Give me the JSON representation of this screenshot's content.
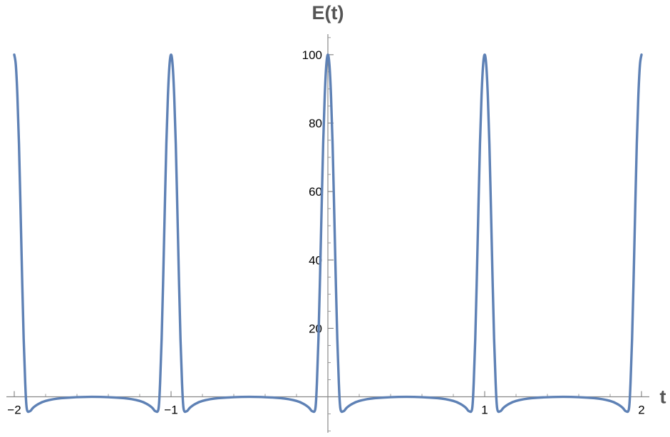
{
  "chart_data": {
    "type": "line",
    "title": "",
    "xlabel": "t",
    "ylabel": "E(t)",
    "xlim": [
      -2.05,
      2.05
    ],
    "ylim": [
      -10.5,
      106
    ],
    "x_ticks": [
      {
        "value": -2,
        "label": "−2"
      },
      {
        "value": -1,
        "label": "−1"
      },
      {
        "value": 1,
        "label": "1"
      },
      {
        "value": 2,
        "label": "2"
      }
    ],
    "y_ticks": [
      {
        "value": 20,
        "label": "20"
      },
      {
        "value": 40,
        "label": "40"
      },
      {
        "value": 60,
        "label": "60"
      },
      {
        "value": 80,
        "label": "80"
      },
      {
        "value": 100,
        "label": "100"
      }
    ],
    "grid": false,
    "legend": "none",
    "line_color": "#5E81B5",
    "series": [
      {
        "name": "",
        "x": [
          -2,
          -1.99,
          -1.98,
          -1.97,
          -1.96,
          -1.95,
          -1.94,
          -1.93,
          -1.92,
          -1.9,
          -1.88,
          -1.85,
          -1.8,
          -1.7,
          -1.5,
          -1.3,
          -1.2,
          -1.15,
          -1.12,
          -1.1,
          -1.08,
          -1.07,
          -1.06,
          -1.05,
          -1.04,
          -1.03,
          -1.02,
          -1.01,
          -1,
          -0.99,
          -0.98,
          -0.97,
          -0.96,
          -0.95,
          -0.94,
          -0.93,
          -0.92,
          -0.9,
          -0.88,
          -0.85,
          -0.8,
          -0.7,
          -0.5,
          -0.3,
          -0.2,
          -0.15,
          -0.12,
          -0.1,
          -0.08,
          -0.07,
          -0.06,
          -0.05,
          -0.04,
          -0.03,
          -0.02,
          -0.01,
          0,
          0.01,
          0.02,
          0.03,
          0.04,
          0.05,
          0.06,
          0.07,
          0.08,
          0.1,
          0.12,
          0.15,
          0.2,
          0.3,
          0.5,
          0.7,
          0.8,
          0.85,
          0.88,
          0.9,
          0.92,
          0.93,
          0.94,
          0.95,
          0.96,
          0.97,
          0.98,
          0.99,
          1,
          1.01,
          1.02,
          1.03,
          1.04,
          1.05,
          1.06,
          1.07,
          1.08,
          1.1,
          1.12,
          1.15,
          1.2,
          1.3,
          1.5,
          1.7,
          1.8,
          1.85,
          1.88,
          1.9,
          1.92,
          1.93,
          1.94,
          1.95,
          1.96,
          1.97,
          1.98,
          1.99,
          2
        ],
        "values": [
          100,
          97,
          88,
          74,
          55,
          35,
          17,
          4,
          -3.5,
          -4.2,
          -3.2,
          -2.2,
          -1.2,
          -0.4,
          0,
          -0.4,
          -1.2,
          -2.2,
          -3.2,
          -4.2,
          -3.5,
          4,
          17,
          35,
          55,
          74,
          88,
          97,
          100,
          97,
          88,
          74,
          55,
          35,
          17,
          4,
          -3.5,
          -4.2,
          -3.2,
          -2.2,
          -1.2,
          -0.4,
          0,
          -0.4,
          -1.2,
          -2.2,
          -3.2,
          -4.2,
          -3.5,
          4,
          17,
          35,
          55,
          74,
          88,
          97,
          100,
          97,
          88,
          74,
          55,
          35,
          17,
          4,
          -3.5,
          -4.2,
          -3.2,
          -2.2,
          -1.2,
          -0.4,
          0,
          -0.4,
          -1.2,
          -2.2,
          -3.2,
          -4.2,
          -3.5,
          4,
          17,
          35,
          55,
          74,
          88,
          97,
          100,
          97,
          88,
          74,
          55,
          35,
          17,
          4,
          -3.5,
          -4.2,
          -3.2,
          -2.2,
          -1.2,
          -0.4,
          0,
          -0.4,
          -1.2,
          -2.2,
          -3.2,
          -4.2,
          -3.5,
          4,
          17,
          35,
          55,
          74,
          88,
          97,
          100
        ]
      }
    ]
  }
}
